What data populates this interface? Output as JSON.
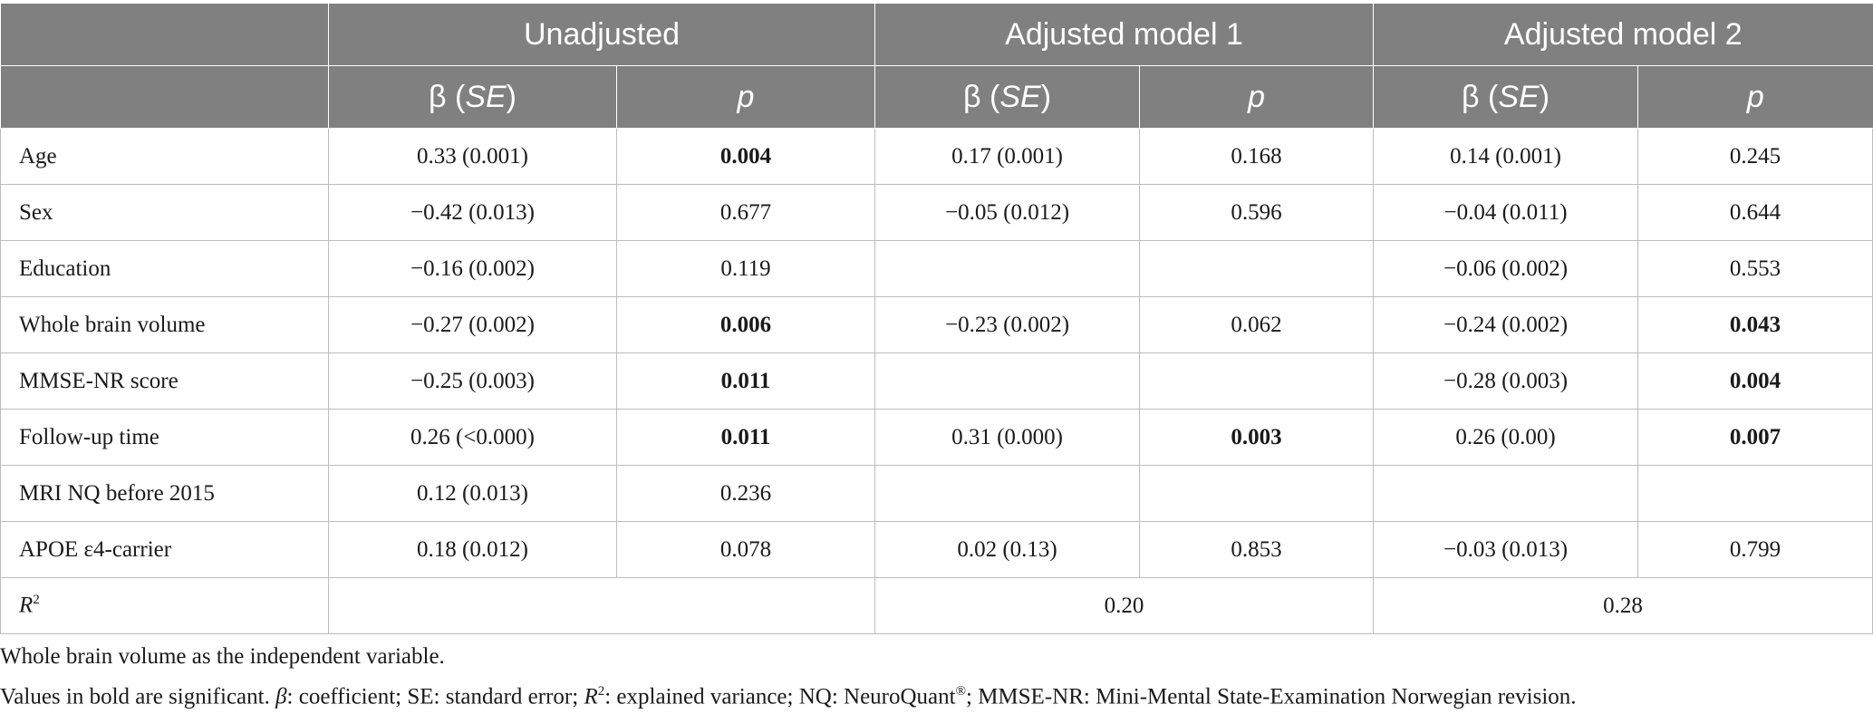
{
  "table": {
    "group_headers": [
      "Unadjusted",
      "Adjusted model 1",
      "Adjusted model 2"
    ],
    "sub_headers": {
      "beta": "β (",
      "se": "SE",
      "close": ")",
      "p": "p"
    },
    "rows": [
      {
        "label": "Age",
        "u_b": "0.33 (0.001)",
        "u_p": "0.004",
        "u_p_bold": true,
        "m1_b": "0.17 (0.001)",
        "m1_p": "0.168",
        "m1_p_bold": false,
        "m2_b": "0.14 (0.001)",
        "m2_p": "0.245",
        "m2_p_bold": false
      },
      {
        "label": "Sex",
        "u_b": "−0.42 (0.013)",
        "u_p": "0.677",
        "u_p_bold": false,
        "m1_b": "−0.05 (0.012)",
        "m1_p": "0.596",
        "m1_p_bold": false,
        "m2_b": "−0.04 (0.011)",
        "m2_p": "0.644",
        "m2_p_bold": false
      },
      {
        "label": "Education",
        "u_b": "−0.16 (0.002)",
        "u_p": "0.119",
        "u_p_bold": false,
        "m1_b": "",
        "m1_p": "",
        "m1_p_bold": false,
        "m2_b": "−0.06 (0.002)",
        "m2_p": "0.553",
        "m2_p_bold": false
      },
      {
        "label": "Whole brain volume",
        "u_b": "−0.27 (0.002)",
        "u_p": "0.006",
        "u_p_bold": true,
        "m1_b": "−0.23 (0.002)",
        "m1_p": "0.062",
        "m1_p_bold": false,
        "m2_b": "−0.24 (0.002)",
        "m2_p": "0.043",
        "m2_p_bold": true
      },
      {
        "label": "MMSE-NR score",
        "u_b": "−0.25 (0.003)",
        "u_p": "0.011",
        "u_p_bold": true,
        "m1_b": "",
        "m1_p": "",
        "m1_p_bold": false,
        "m2_b": "−0.28 (0.003)",
        "m2_p": "0.004",
        "m2_p_bold": true
      },
      {
        "label": "Follow-up time",
        "u_b": "0.26 (<0.000)",
        "u_p": "0.011",
        "u_p_bold": true,
        "m1_b": "0.31 (0.000)",
        "m1_p": "0.003",
        "m1_p_bold": true,
        "m2_b": "0.26 (0.00)",
        "m2_p": "0.007",
        "m2_p_bold": true
      },
      {
        "label": "MRI NQ before 2015",
        "u_b": "0.12 (0.013)",
        "u_p": "0.236",
        "u_p_bold": false,
        "m1_b": "",
        "m1_p": "",
        "m1_p_bold": false,
        "m2_b": "",
        "m2_p": "",
        "m2_p_bold": false
      },
      {
        "label": "APOE ε4-carrier",
        "u_b": "0.18 (0.012)",
        "u_p": "0.078",
        "u_p_bold": false,
        "m1_b": "0.02 (0.13)",
        "m1_p": "0.853",
        "m1_p_bold": false,
        "m2_b": "−0.03 (0.013)",
        "m2_p": "0.799",
        "m2_p_bold": false
      }
    ],
    "r2_row": {
      "label_main": "R",
      "label_sup": "2",
      "unadjusted": "",
      "m1": "0.20",
      "m2": "0.28"
    }
  },
  "notes": {
    "line1": "Whole brain volume as the independent variable.",
    "line2_a": "Values in bold are significant. ",
    "line2_beta": "β",
    "line2_b": ": coefficient; SE: standard error; ",
    "line2_r": "R",
    "line2_r_sup": "2",
    "line2_c": ": explained variance; NQ: NeuroQuant",
    "line2_reg": "®",
    "line2_d": "; MMSE-NR: Mini-Mental State-Examination Norwegian revision."
  }
}
